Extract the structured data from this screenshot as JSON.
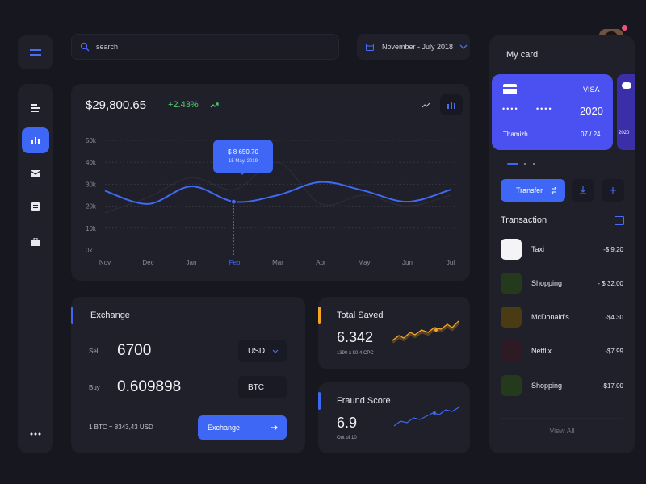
{
  "search": {
    "placeholder": "search"
  },
  "date_range": {
    "label": "November - July 2018"
  },
  "summary": {
    "value": "$29,800.65",
    "change": "+2.43%"
  },
  "chart_data": {
    "type": "line",
    "categories": [
      "Nov",
      "Dec",
      "Jan",
      "Feb",
      "Mar",
      "Apr",
      "May",
      "Jun",
      "Jul"
    ],
    "y_ticks": [
      "50k",
      "40k",
      "30k",
      "20k",
      "10k",
      "0k"
    ],
    "ylim": [
      0,
      50000
    ],
    "grid": true,
    "series": [
      {
        "values": [
          27000,
          21000,
          29000,
          22000,
          25000,
          31000,
          27000,
          22000,
          27500
        ],
        "color": "#3e6af5"
      },
      {
        "values": [
          17000,
          24000,
          33000,
          27500,
          40000,
          21000,
          25000,
          20000,
          25000
        ],
        "color": "#2d2d3a"
      }
    ],
    "highlight_label": "Feb",
    "tooltip": {
      "value": "$ 8 650.70",
      "date": "15 May, 2019"
    }
  },
  "exchange": {
    "title": "Exchange",
    "sell_label": "Sell",
    "sell_value": "6700",
    "sell_currency": "USD",
    "buy_label": "Buy",
    "buy_value": "0.609898",
    "buy_currency": "BTC",
    "rate": "1 BTC = 8343,43  USD",
    "button": "Exchange"
  },
  "total_saved": {
    "title": "Total Saved",
    "value": "6.342",
    "sub": "1390 x $0.4 CPC",
    "accent": "#f5a524"
  },
  "fraud_score": {
    "title": "Fraund Score",
    "value": "6.9",
    "sub": "Out of 10",
    "accent": "#3e67f5"
  },
  "card": {
    "title": "My card",
    "brand": "VISA",
    "dots1": "••••",
    "dots2": "••••",
    "year": "2020",
    "holder": "Thamizh",
    "expiry": "07 / 24",
    "next_year": "2020"
  },
  "actions": {
    "transfer": "Transfer"
  },
  "transactions": {
    "title": "Transaction",
    "items": [
      {
        "name": "Taxi",
        "amount": "-$ 9.20",
        "color": "#f4f4f6"
      },
      {
        "name": "Shopping",
        "amount": "- $ 32.00",
        "color": "#253a1c"
      },
      {
        "name": "McDonald's",
        "amount": "-$4.30",
        "color": "#4a3b12"
      },
      {
        "name": "Netflix",
        "amount": "-$7.99",
        "color": "#2d1a22"
      },
      {
        "name": "Shopping",
        "amount": "-$17.00",
        "color": "#253a1c"
      }
    ],
    "view_all": "View All"
  }
}
